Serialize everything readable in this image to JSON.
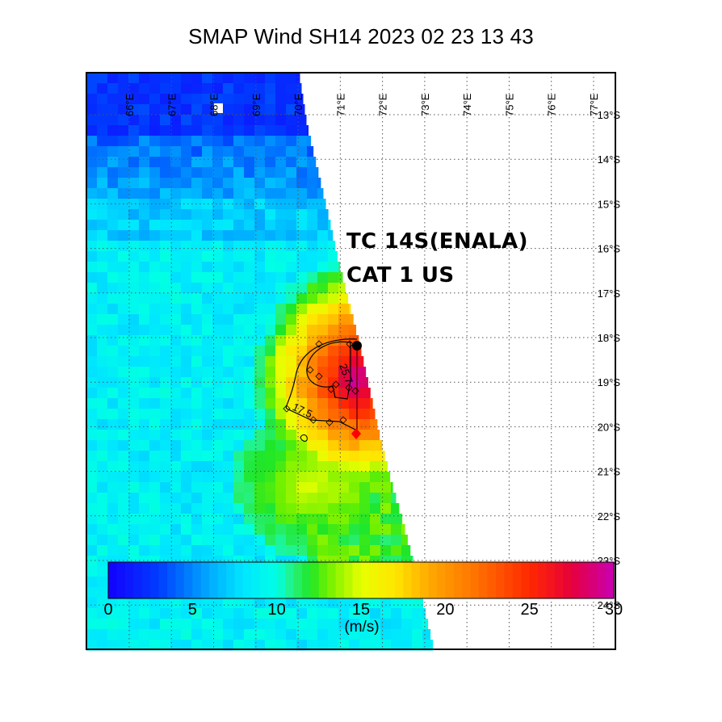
{
  "title": "SMAP Wind  SH14  2023 02 23 13 43",
  "annotation": {
    "line1": "TC 14S(ENALA)",
    "line2": "CAT 1 US"
  },
  "map": {
    "lon_labels": [
      "66°E",
      "67°E",
      "68°E",
      "69°E",
      "70°E",
      "71°E",
      "72°E",
      "73°E",
      "74°E",
      "75°E",
      "76°E",
      "77°E"
    ],
    "lat_labels": [
      "13°S",
      "14°S",
      "15°S",
      "16°S",
      "17°S",
      "18°S",
      "19°S",
      "20°S",
      "21°S",
      "22°S",
      "23°S",
      "24°S"
    ],
    "lon_range": [
      65.0,
      77.9
    ],
    "lat_range": [
      -12.0,
      -25.0
    ],
    "contour_labels": [
      "25.7",
      "17.5"
    ],
    "markers": [
      {
        "name": "black-dot",
        "lon": 71.4,
        "lat": -18.3,
        "color": "#000000"
      },
      {
        "name": "red-diamond",
        "lon": 71.4,
        "lat": -20.3,
        "color": "#ff0000"
      }
    ]
  },
  "colorbar": {
    "ticks": [
      "0",
      "5",
      "10",
      "15",
      "20",
      "25",
      "30"
    ],
    "units": "(m/s)",
    "min": 0,
    "max": 30
  }
}
